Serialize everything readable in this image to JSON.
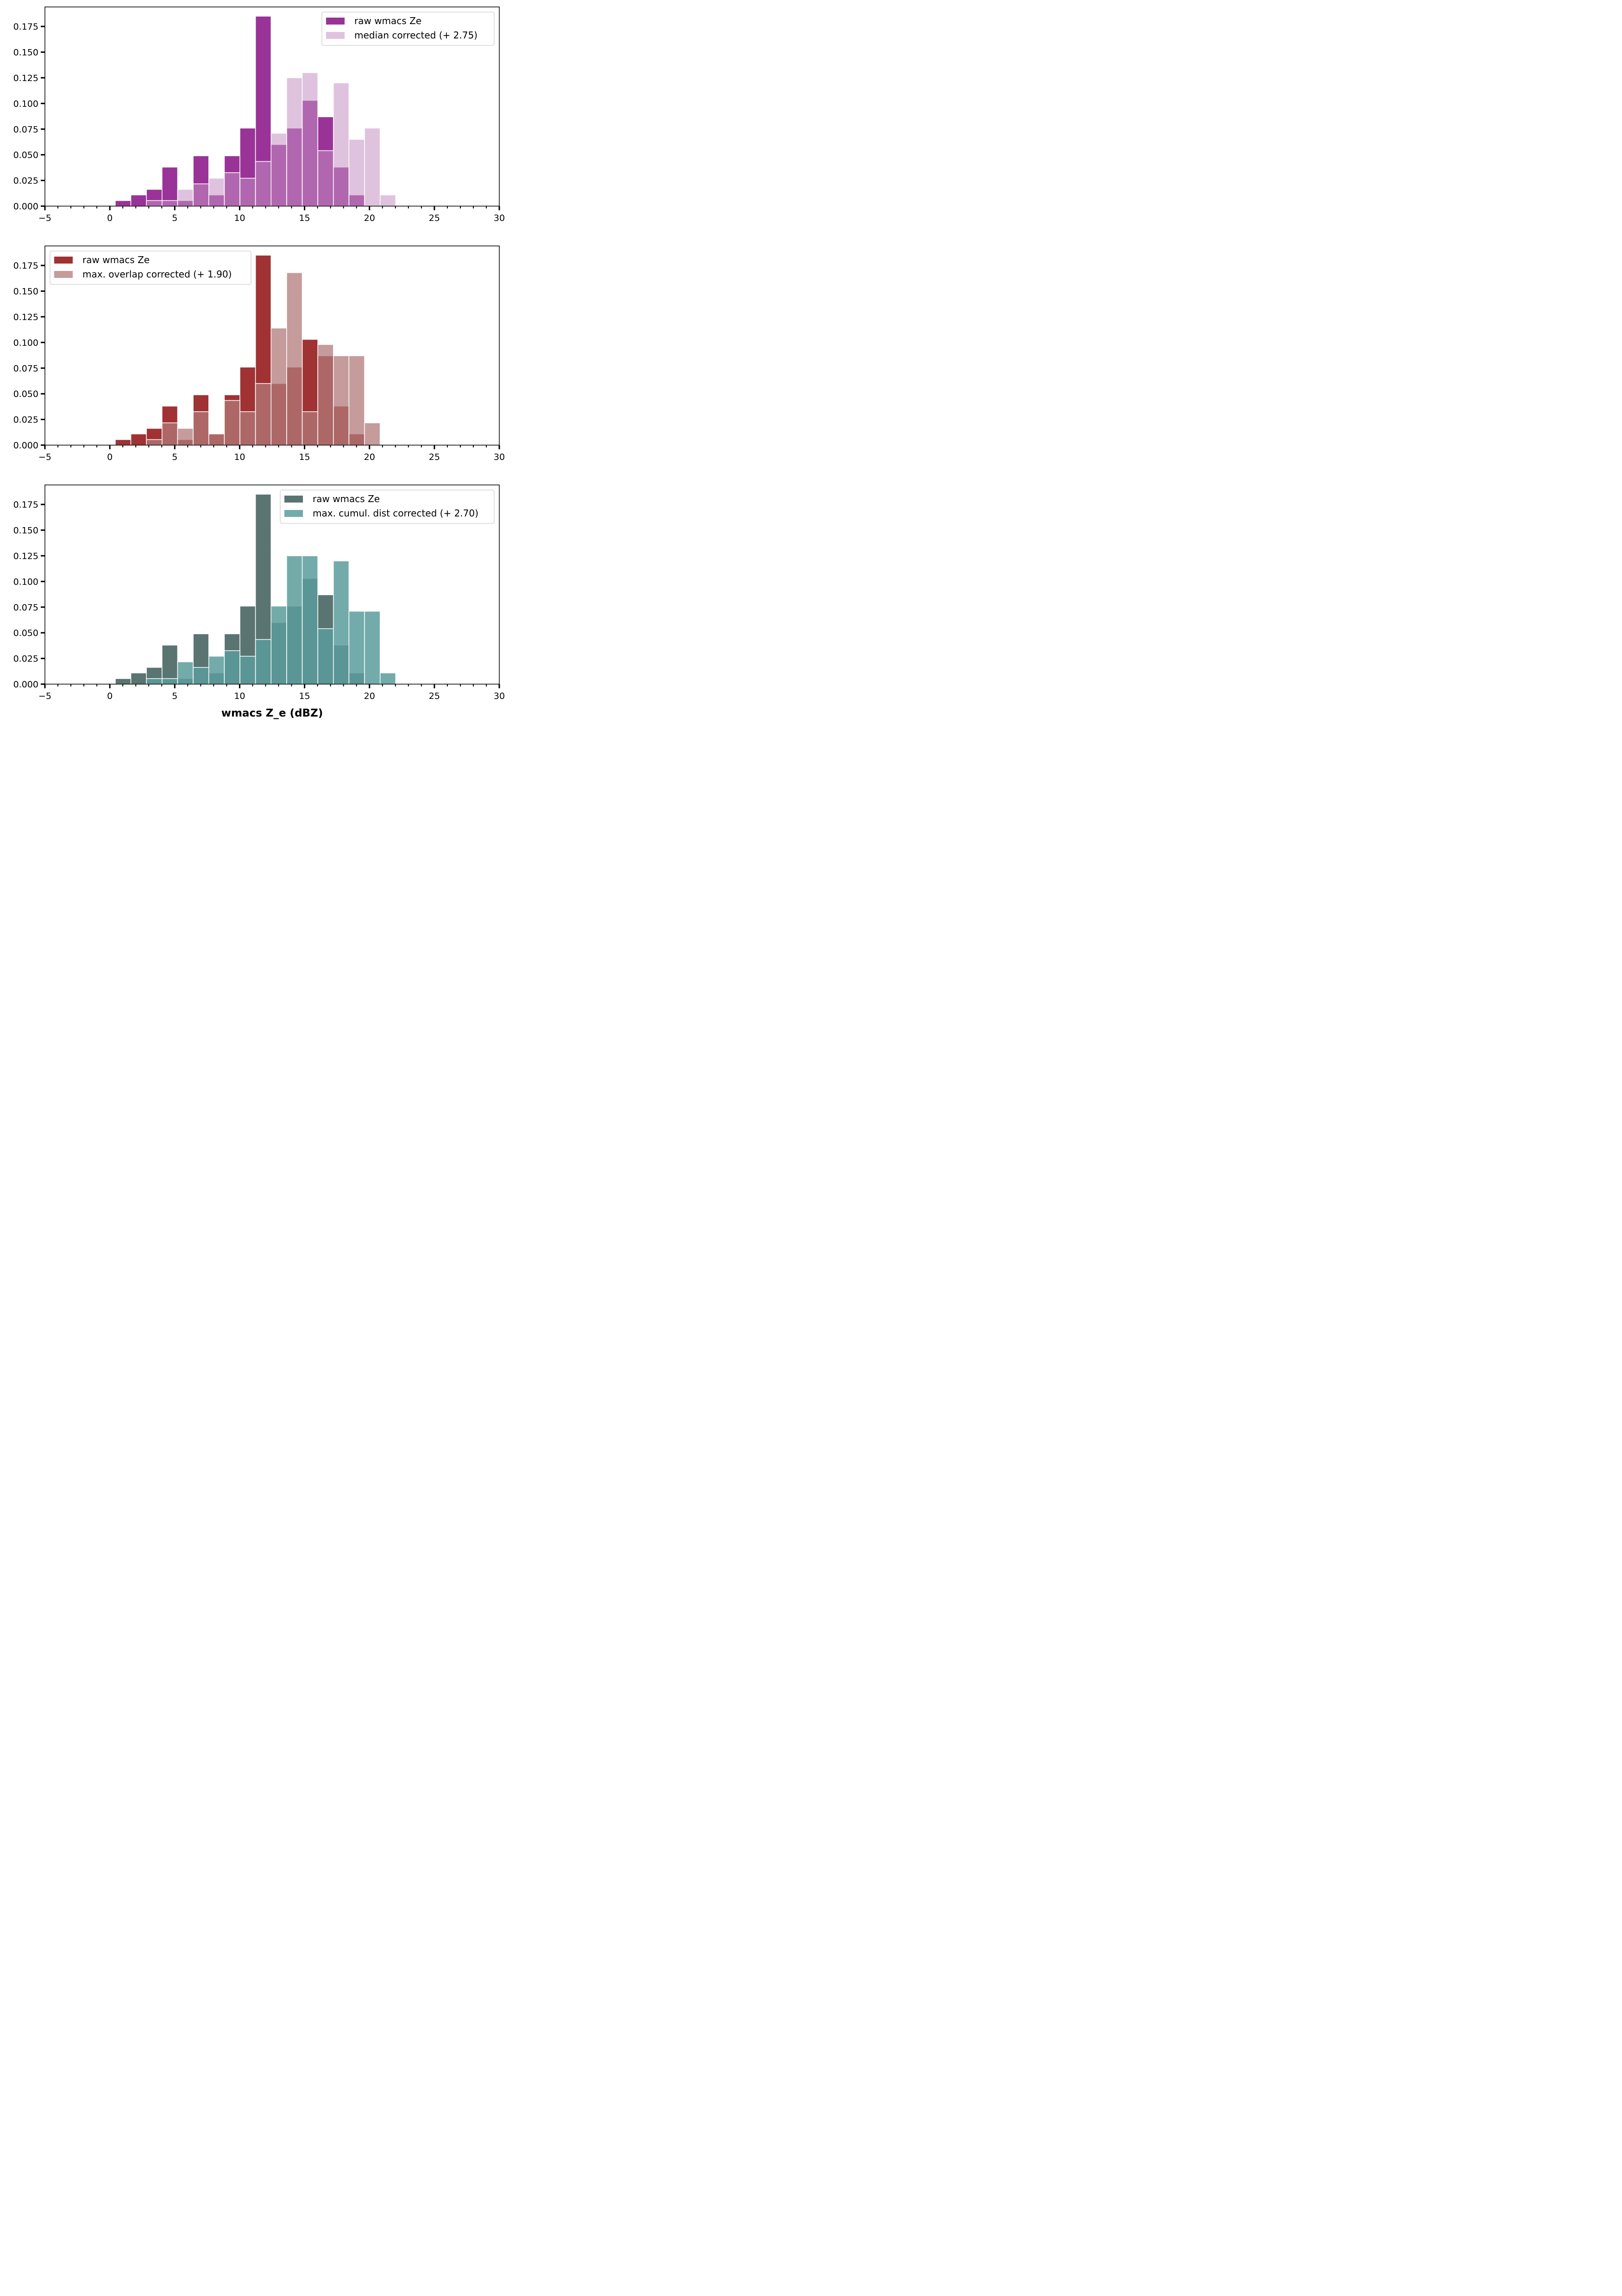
{
  "chart_data": [
    {
      "type": "bar",
      "title": "",
      "xlabel": "",
      "ylabel": "",
      "xlim": [
        -5,
        30
      ],
      "ylim": [
        0,
        0.194
      ],
      "xticks": [
        "−5",
        "0",
        "5",
        "10",
        "15",
        "20",
        "25",
        "30"
      ],
      "xtick_values": [
        -5,
        0,
        5,
        10,
        15,
        20,
        25,
        30
      ],
      "yticks": [
        "0.000",
        "0.025",
        "0.050",
        "0.075",
        "0.100",
        "0.125",
        "0.150",
        "0.175"
      ],
      "ytick_values": [
        0,
        0.025,
        0.05,
        0.075,
        0.1,
        0.125,
        0.15,
        0.175
      ],
      "legend_position": "top-right",
      "bin_edges_start": 0.42,
      "bin_width": 1.2,
      "series": [
        {
          "name": "raw wmacs Ze",
          "color": "#9a3397",
          "values": [
            0.0054,
            0.0109,
            0.0163,
            0.038,
            0.0054,
            0.049,
            0.0109,
            0.049,
            0.076,
            0.185,
            0.06,
            0.076,
            0.103,
            0.087,
            0.038,
            0.0109
          ]
        },
        {
          "name": "median corrected (+ 2.75)",
          "color": "#c592c3",
          "alpha": 0.55,
          "values": [
            0,
            0,
            0.0054,
            0.0054,
            0.0163,
            0.0217,
            0.0272,
            0.0326,
            0.0272,
            0.0435,
            0.071,
            0.125,
            0.13,
            0.054,
            0.12,
            0.065,
            0.076,
            0.0109
          ]
        }
      ]
    },
    {
      "type": "bar",
      "title": "",
      "xlabel": "",
      "ylabel": "",
      "xlim": [
        -5,
        30
      ],
      "ylim": [
        0,
        0.194
      ],
      "xticks": [
        "−5",
        "0",
        "5",
        "10",
        "15",
        "20",
        "25",
        "30"
      ],
      "xtick_values": [
        -5,
        0,
        5,
        10,
        15,
        20,
        25,
        30
      ],
      "yticks": [
        "0.000",
        "0.025",
        "0.050",
        "0.075",
        "0.100",
        "0.125",
        "0.150",
        "0.175"
      ],
      "ytick_values": [
        0,
        0.025,
        0.05,
        0.075,
        0.1,
        0.125,
        0.15,
        0.175
      ],
      "legend_position": "top-left",
      "bin_edges_start": 0.42,
      "bin_width": 1.2,
      "series": [
        {
          "name": "raw wmacs Ze",
          "color": "#a03233",
          "values": [
            0.0054,
            0.0109,
            0.0163,
            0.038,
            0.0054,
            0.049,
            0.0109,
            0.049,
            0.076,
            0.185,
            0.06,
            0.076,
            0.103,
            0.087,
            0.038,
            0.0109
          ]
        },
        {
          "name": "max. overlap corrected (+ 1.90)",
          "color": "#b27a7a",
          "alpha": 0.75,
          "values": [
            0,
            0,
            0.0054,
            0.0217,
            0.0163,
            0.0326,
            0.0109,
            0.0435,
            0.0326,
            0.06,
            0.114,
            0.168,
            0.0326,
            0.098,
            0.087,
            0.087,
            0.0217
          ]
        }
      ]
    },
    {
      "type": "bar",
      "title": "",
      "xlabel": "wmacs Z_e (dBZ)",
      "ylabel": "",
      "xlim": [
        -5,
        30
      ],
      "ylim": [
        0,
        0.194
      ],
      "xticks": [
        "−5",
        "0",
        "5",
        "10",
        "15",
        "20",
        "25",
        "30"
      ],
      "xtick_values": [
        -5,
        0,
        5,
        10,
        15,
        20,
        25,
        30
      ],
      "yticks": [
        "0.000",
        "0.025",
        "0.050",
        "0.075",
        "0.100",
        "0.125",
        "0.150",
        "0.175"
      ],
      "ytick_values": [
        0,
        0.025,
        0.05,
        0.075,
        0.1,
        0.125,
        0.15,
        0.175
      ],
      "legend_position": "top-right",
      "bin_edges_start": 0.42,
      "bin_width": 1.2,
      "series": [
        {
          "name": "raw wmacs Ze",
          "color": "#5a7472",
          "values": [
            0.0054,
            0.0109,
            0.0163,
            0.038,
            0.0054,
            0.049,
            0.0109,
            0.049,
            0.076,
            0.185,
            0.06,
            0.076,
            0.103,
            0.087,
            0.038,
            0.0109
          ]
        },
        {
          "name": "max. cumul. dist corrected (+ 2.70)",
          "color": "#5a9c9c",
          "alpha": 0.85,
          "values": [
            0,
            0,
            0.0054,
            0.0054,
            0.0217,
            0.0163,
            0.0272,
            0.0326,
            0.0272,
            0.0435,
            0.076,
            0.125,
            0.125,
            0.054,
            0.12,
            0.071,
            0.071,
            0.0109
          ]
        }
      ]
    }
  ]
}
